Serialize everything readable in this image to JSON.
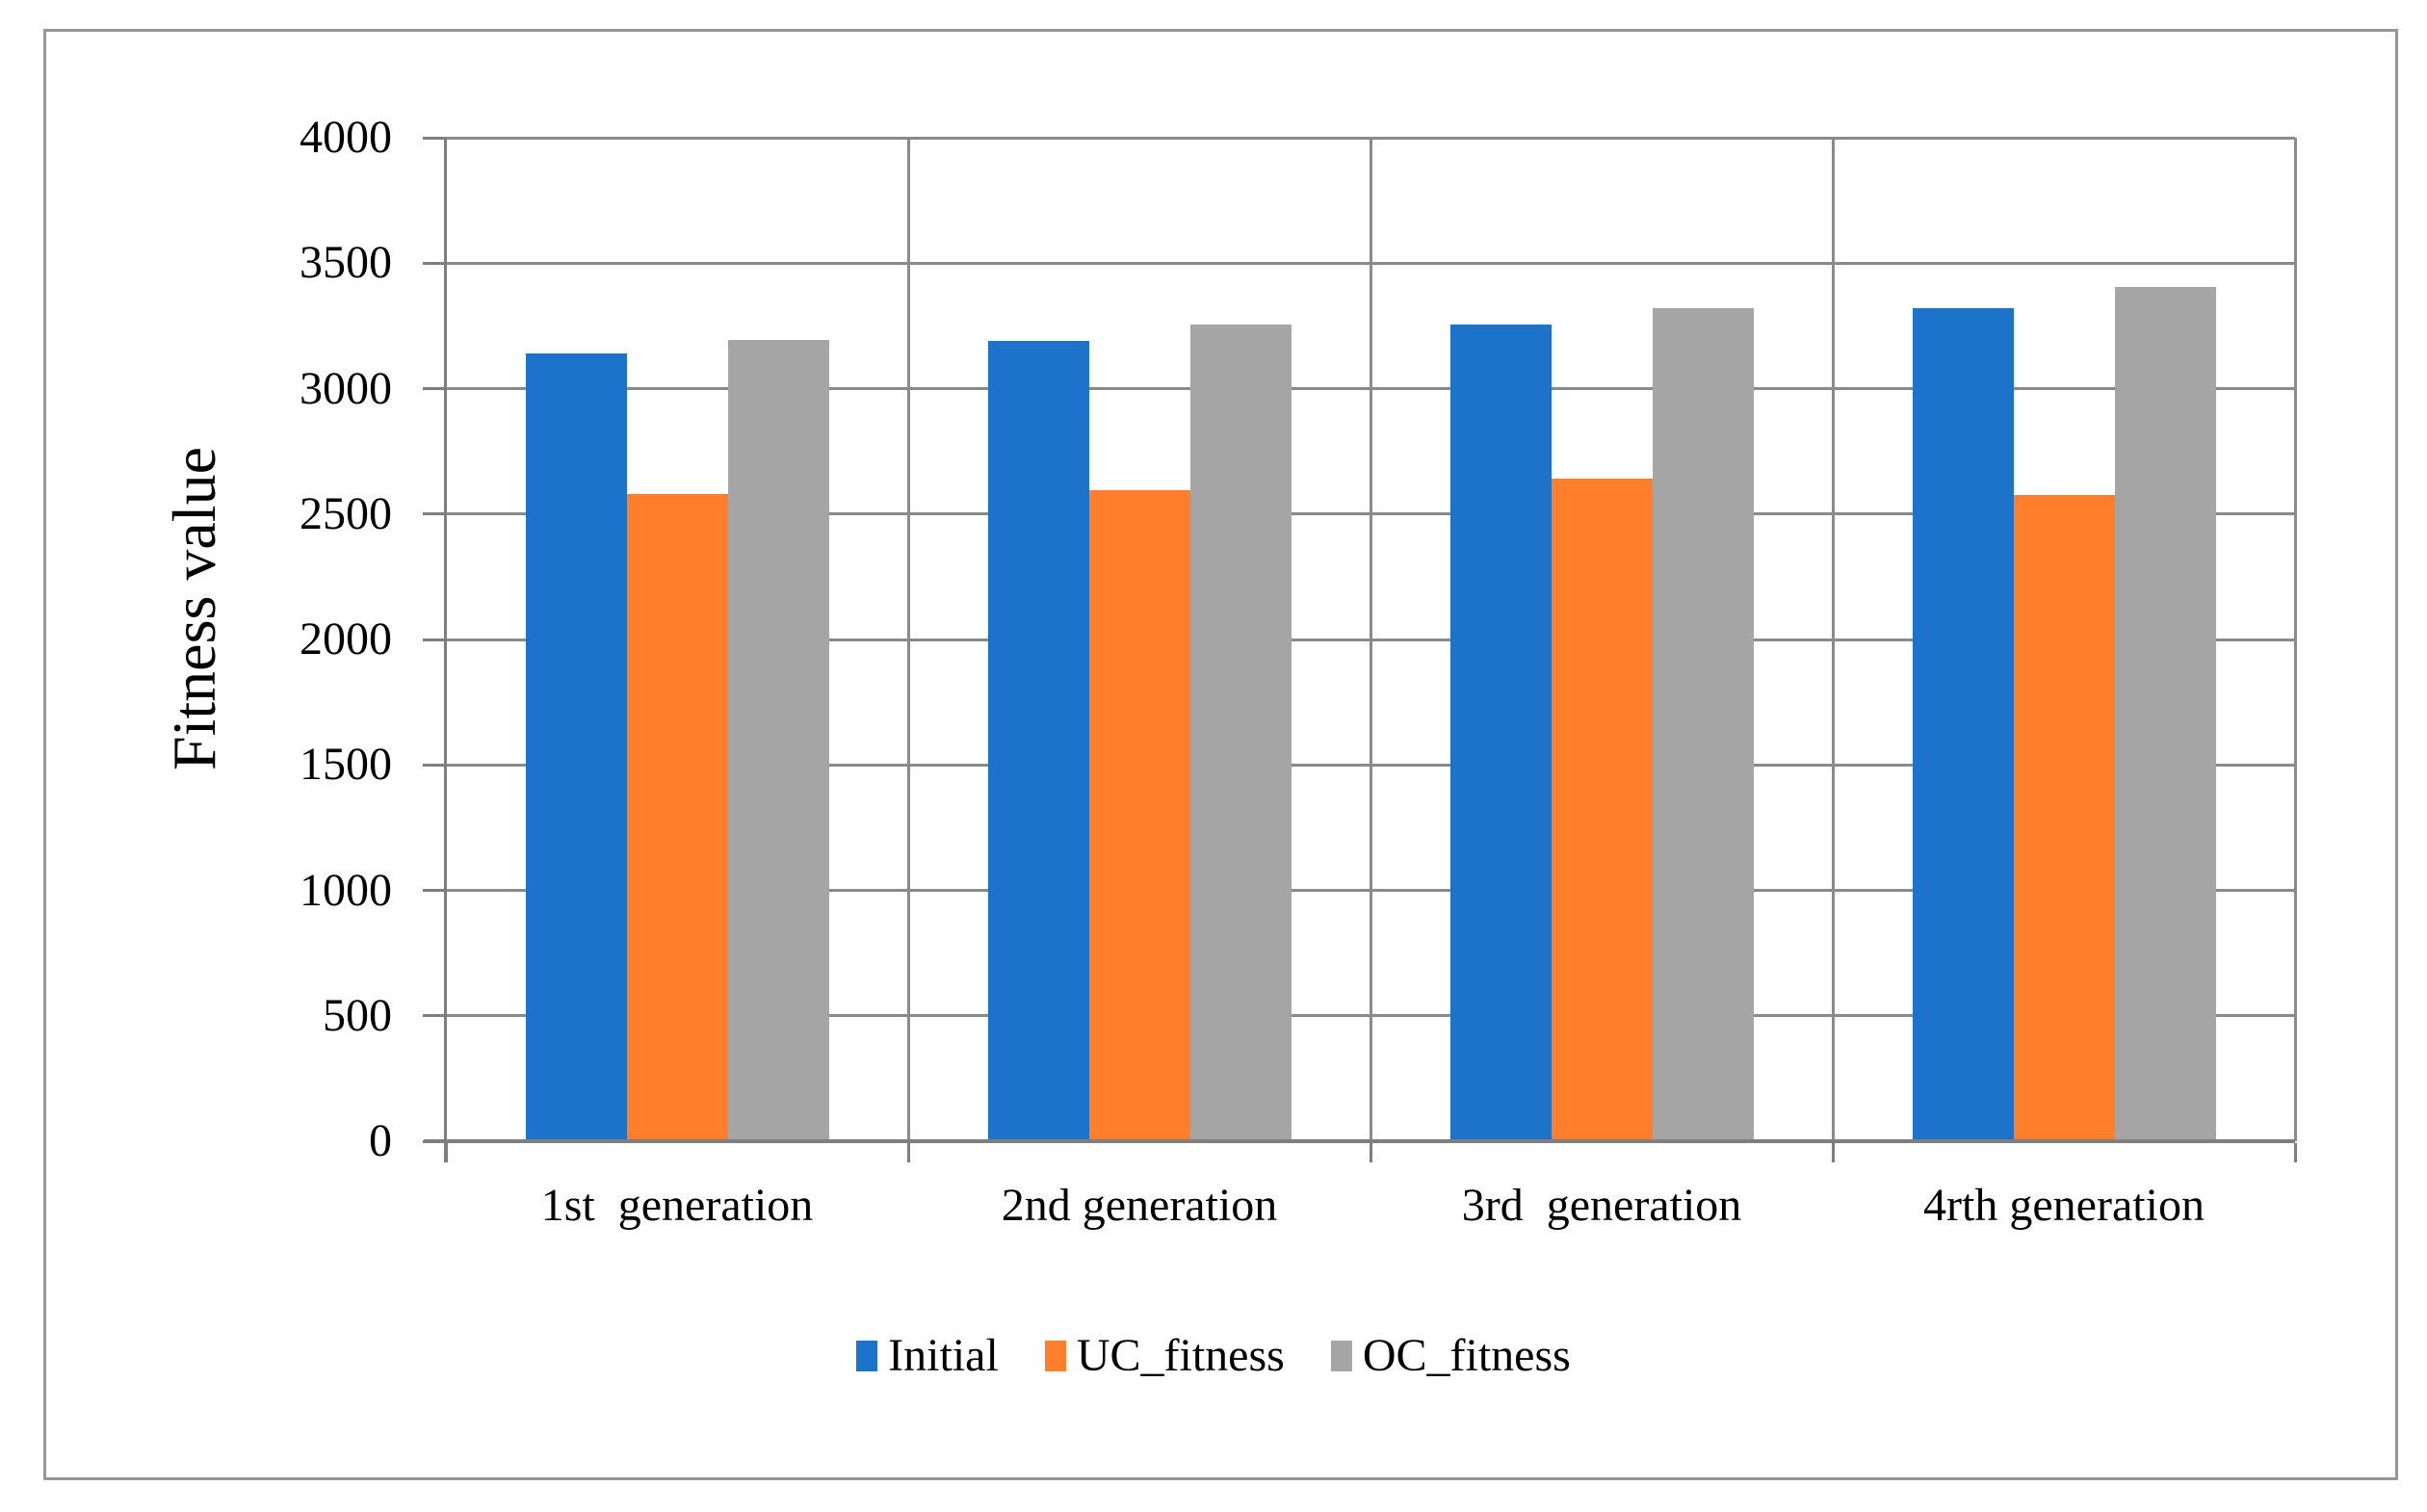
{
  "chart_data": {
    "type": "bar",
    "title": "",
    "xlabel": "",
    "ylabel": "Fitness value",
    "categories": [
      "1st  generation",
      "2nd generation",
      "3rd  generation",
      "4rth generation"
    ],
    "series": [
      {
        "name": "Initial",
        "color": "#1c73c9",
        "values": [
          3140,
          3190,
          3255,
          3320
        ]
      },
      {
        "name": "UC_fitness",
        "color": "#ff7e2c",
        "values": [
          2580,
          2595,
          2640,
          2575
        ]
      },
      {
        "name": "OC_fitness",
        "color": "#a6a5a5",
        "values": [
          3195,
          3255,
          3320,
          3405
        ]
      }
    ],
    "ylim": [
      0,
      4000
    ],
    "ytick_step": 500,
    "yticks": [
      0,
      500,
      1000,
      1500,
      2000,
      2500,
      3000,
      3500,
      4000
    ],
    "grid": true,
    "gridline_color": "#8a8a8a",
    "axis_color": "#7e7e7e",
    "frame_color": "#979797",
    "legend_position": "bottom"
  }
}
